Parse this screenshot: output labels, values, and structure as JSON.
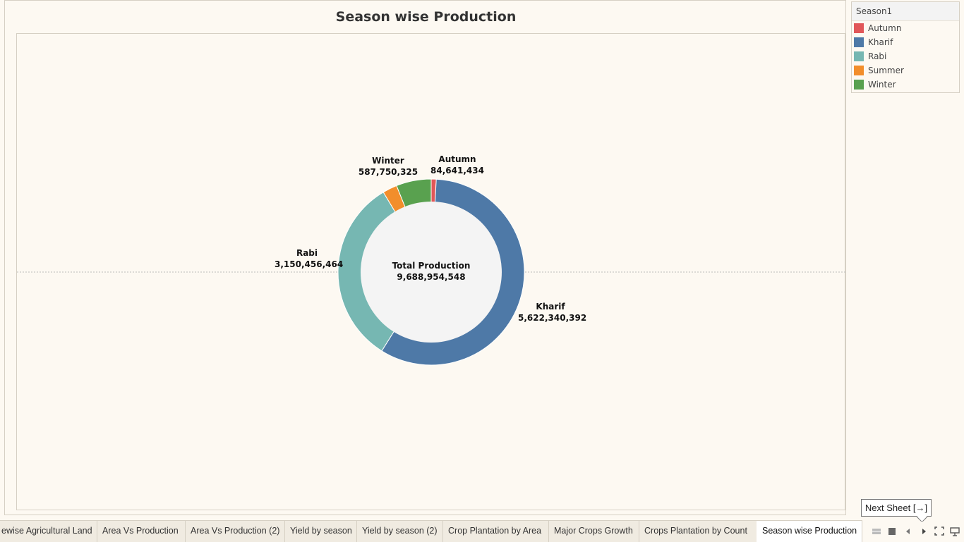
{
  "chart_data": {
    "type": "pie",
    "title": "Season wise Production",
    "center_label": "Total Production",
    "center_value": "9,688,954,548",
    "slices": [
      {
        "name": "Autumn",
        "value": 84641434,
        "label": "84,641,434",
        "color": "#e15759"
      },
      {
        "name": "Kharif",
        "value": 5622340392,
        "label": "5,622,340,392",
        "color": "#4e79a7"
      },
      {
        "name": "Rabi",
        "value": 3150456464,
        "label": "3,150,456,464",
        "color": "#76b7b2"
      },
      {
        "name": "Summer",
        "value": 243765933,
        "label": "",
        "color": "#f28e2b"
      },
      {
        "name": "Winter",
        "value": 587750325,
        "label": "587,750,325",
        "color": "#59a14f"
      }
    ]
  },
  "legend": {
    "title": "Season1",
    "items": [
      {
        "label": "Autumn",
        "color": "#e15759"
      },
      {
        "label": "Kharif",
        "color": "#4e79a7"
      },
      {
        "label": "Rabi",
        "color": "#76b7b2"
      },
      {
        "label": "Summer",
        "color": "#f28e2b"
      },
      {
        "label": "Winter",
        "color": "#59a14f"
      }
    ]
  },
  "tabs": [
    "ewise Agricultural Land",
    "Area Vs Production",
    "Area Vs Production (2)",
    "Yield by season",
    "Yield by season (2)",
    "Crop Plantation by Area",
    "Major Crops Growth",
    "Crops Plantation by Count",
    "Season wise Production"
  ],
  "active_tab": "Season wise Production",
  "tooltip": "Next Sheet [→]",
  "controls": [
    "grid-view-icon",
    "single-view-icon",
    "prev-sheet-icon",
    "next-sheet-icon",
    "fullscreen-icon",
    "presentation-icon"
  ]
}
